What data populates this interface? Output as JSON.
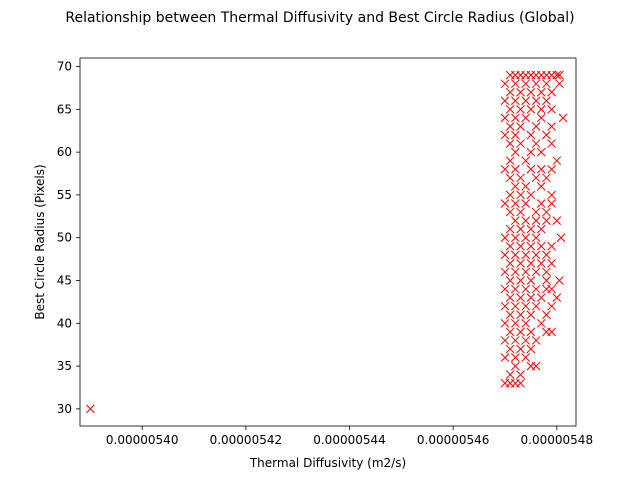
{
  "chart_data": {
    "type": "scatter",
    "title": "Relationship between Thermal Diffusivity and Best Circle Radius (Global)",
    "xlabel": "Thermal Diffusivity (m2/s)",
    "ylabel": "Best Circle Radius (Pixels)",
    "xlim": [
      5.388e-06,
      5.4837e-06
    ],
    "ylim": [
      28.0,
      71.0
    ],
    "grid": false,
    "marker": "x",
    "marker_color": "#ff0000",
    "x_ticks": [
      {
        "value": 5.4e-06,
        "label": "0.00000540"
      },
      {
        "value": 5.420000000000001e-06,
        "label": "0.00000542"
      },
      {
        "value": 5.4400000000000004e-06,
        "label": "0.00000544"
      },
      {
        "value": 5.46e-06,
        "label": "0.00000546"
      },
      {
        "value": 5.48e-06,
        "label": "0.00000548"
      }
    ],
    "y_ticks": [
      {
        "value": 30,
        "label": "30"
      },
      {
        "value": 35,
        "label": "35"
      },
      {
        "value": 40,
        "label": "40"
      },
      {
        "value": 45,
        "label": "45"
      },
      {
        "value": 50,
        "label": "50"
      },
      {
        "value": 55,
        "label": "55"
      },
      {
        "value": 60,
        "label": "60"
      },
      {
        "value": 65,
        "label": "65"
      },
      {
        "value": 70,
        "label": "70"
      }
    ],
    "points": [
      [
        5.39e-06,
        30
      ],
      [
        5.47e-06,
        33
      ],
      [
        5.471e-06,
        33
      ],
      [
        5.472e-06,
        33
      ],
      [
        5.473e-06,
        33
      ],
      [
        5.471e-06,
        34
      ],
      [
        5.473e-06,
        34
      ],
      [
        5.475e-06,
        35
      ],
      [
        5.472e-06,
        35
      ],
      [
        5.476e-06,
        35
      ],
      [
        5.47e-06,
        36
      ],
      [
        5.472e-06,
        36
      ],
      [
        5.474e-06,
        36
      ],
      [
        5.471e-06,
        37
      ],
      [
        5.473e-06,
        37
      ],
      [
        5.475e-06,
        37
      ],
      [
        5.47e-06,
        38
      ],
      [
        5.472e-06,
        38
      ],
      [
        5.474e-06,
        38
      ],
      [
        5.476e-06,
        38
      ],
      [
        5.471e-06,
        39
      ],
      [
        5.473e-06,
        39
      ],
      [
        5.475e-06,
        39
      ],
      [
        5.478e-06,
        39
      ],
      [
        5.479e-06,
        39
      ],
      [
        5.47e-06,
        40
      ],
      [
        5.472e-06,
        40
      ],
      [
        5.474e-06,
        40
      ],
      [
        5.477e-06,
        40
      ],
      [
        5.471e-06,
        41
      ],
      [
        5.473e-06,
        41
      ],
      [
        5.475e-06,
        41
      ],
      [
        5.478e-06,
        41
      ],
      [
        5.47e-06,
        42
      ],
      [
        5.472e-06,
        42
      ],
      [
        5.474e-06,
        42
      ],
      [
        5.476e-06,
        42
      ],
      [
        5.479e-06,
        42
      ],
      [
        5.471e-06,
        43
      ],
      [
        5.473e-06,
        43
      ],
      [
        5.475e-06,
        43
      ],
      [
        5.477e-06,
        43
      ],
      [
        5.48e-06,
        43
      ],
      [
        5.47e-06,
        44
      ],
      [
        5.472e-06,
        44
      ],
      [
        5.474e-06,
        44
      ],
      [
        5.476e-06,
        44
      ],
      [
        5.478e-06,
        44
      ],
      [
        5.479e-06,
        44
      ],
      [
        5.471e-06,
        45
      ],
      [
        5.473e-06,
        45
      ],
      [
        5.475e-06,
        45
      ],
      [
        5.478e-06,
        45
      ],
      [
        5.4805e-06,
        45
      ],
      [
        5.47e-06,
        46
      ],
      [
        5.472e-06,
        46
      ],
      [
        5.474e-06,
        46
      ],
      [
        5.476e-06,
        46
      ],
      [
        5.478e-06,
        46
      ],
      [
        5.471e-06,
        47
      ],
      [
        5.473e-06,
        47
      ],
      [
        5.475e-06,
        47
      ],
      [
        5.477e-06,
        47
      ],
      [
        5.479e-06,
        47
      ],
      [
        5.47e-06,
        48
      ],
      [
        5.472e-06,
        48
      ],
      [
        5.474e-06,
        48
      ],
      [
        5.476e-06,
        48
      ],
      [
        5.478e-06,
        48
      ],
      [
        5.471e-06,
        49
      ],
      [
        5.473e-06,
        49
      ],
      [
        5.475e-06,
        49
      ],
      [
        5.477e-06,
        49
      ],
      [
        5.479e-06,
        49
      ],
      [
        5.47e-06,
        50
      ],
      [
        5.472e-06,
        50
      ],
      [
        5.474e-06,
        50
      ],
      [
        5.476e-06,
        50
      ],
      [
        5.4808e-06,
        50
      ],
      [
        5.471e-06,
        51
      ],
      [
        5.473e-06,
        51
      ],
      [
        5.475e-06,
        51
      ],
      [
        5.477e-06,
        51
      ],
      [
        5.472e-06,
        52
      ],
      [
        5.474e-06,
        52
      ],
      [
        5.476e-06,
        52
      ],
      [
        5.478e-06,
        52
      ],
      [
        5.48e-06,
        52
      ],
      [
        5.471e-06,
        53
      ],
      [
        5.473e-06,
        53
      ],
      [
        5.476e-06,
        53
      ],
      [
        5.478e-06,
        53
      ],
      [
        5.47e-06,
        54
      ],
      [
        5.472e-06,
        54
      ],
      [
        5.474e-06,
        54
      ],
      [
        5.477e-06,
        54
      ],
      [
        5.479e-06,
        54
      ],
      [
        5.471e-06,
        55
      ],
      [
        5.473e-06,
        55
      ],
      [
        5.475e-06,
        55
      ],
      [
        5.479e-06,
        55
      ],
      [
        5.472e-06,
        56
      ],
      [
        5.474e-06,
        56
      ],
      [
        5.477e-06,
        56
      ],
      [
        5.471e-06,
        57
      ],
      [
        5.473e-06,
        57
      ],
      [
        5.476e-06,
        57
      ],
      [
        5.478e-06,
        57
      ],
      [
        5.47e-06,
        58
      ],
      [
        5.472e-06,
        58
      ],
      [
        5.475e-06,
        58
      ],
      [
        5.477e-06,
        58
      ],
      [
        5.479e-06,
        58
      ],
      [
        5.471e-06,
        59
      ],
      [
        5.474e-06,
        59
      ],
      [
        5.48e-06,
        59
      ],
      [
        5.472e-06,
        60
      ],
      [
        5.475e-06,
        60
      ],
      [
        5.477e-06,
        60
      ],
      [
        5.471e-06,
        61
      ],
      [
        5.473e-06,
        61
      ],
      [
        5.476e-06,
        61
      ],
      [
        5.479e-06,
        61
      ],
      [
        5.47e-06,
        62
      ],
      [
        5.472e-06,
        62
      ],
      [
        5.475e-06,
        62
      ],
      [
        5.478e-06,
        62
      ],
      [
        5.471e-06,
        63
      ],
      [
        5.473e-06,
        63
      ],
      [
        5.476e-06,
        63
      ],
      [
        5.479e-06,
        63
      ],
      [
        5.47e-06,
        64
      ],
      [
        5.472e-06,
        64
      ],
      [
        5.474e-06,
        64
      ],
      [
        5.477e-06,
        64
      ],
      [
        5.4812e-06,
        64
      ],
      [
        5.471e-06,
        65
      ],
      [
        5.473e-06,
        65
      ],
      [
        5.475e-06,
        65
      ],
      [
        5.477e-06,
        65
      ],
      [
        5.479e-06,
        65
      ],
      [
        5.47e-06,
        66
      ],
      [
        5.472e-06,
        66
      ],
      [
        5.474e-06,
        66
      ],
      [
        5.476e-06,
        66
      ],
      [
        5.478e-06,
        66
      ],
      [
        5.471e-06,
        67
      ],
      [
        5.473e-06,
        67
      ],
      [
        5.475e-06,
        67
      ],
      [
        5.477e-06,
        67
      ],
      [
        5.479e-06,
        67
      ],
      [
        5.47e-06,
        68
      ],
      [
        5.472e-06,
        68
      ],
      [
        5.474e-06,
        68
      ],
      [
        5.476e-06,
        68
      ],
      [
        5.478e-06,
        68
      ],
      [
        5.4805e-06,
        68
      ],
      [
        5.471e-06,
        69
      ],
      [
        5.472e-06,
        69
      ],
      [
        5.473e-06,
        69
      ],
      [
        5.474e-06,
        69
      ],
      [
        5.475e-06,
        69
      ],
      [
        5.476e-06,
        69
      ],
      [
        5.477e-06,
        69
      ],
      [
        5.478e-06,
        69
      ],
      [
        5.479e-06,
        69
      ],
      [
        5.48e-06,
        69
      ],
      [
        5.4805e-06,
        69
      ]
    ]
  }
}
